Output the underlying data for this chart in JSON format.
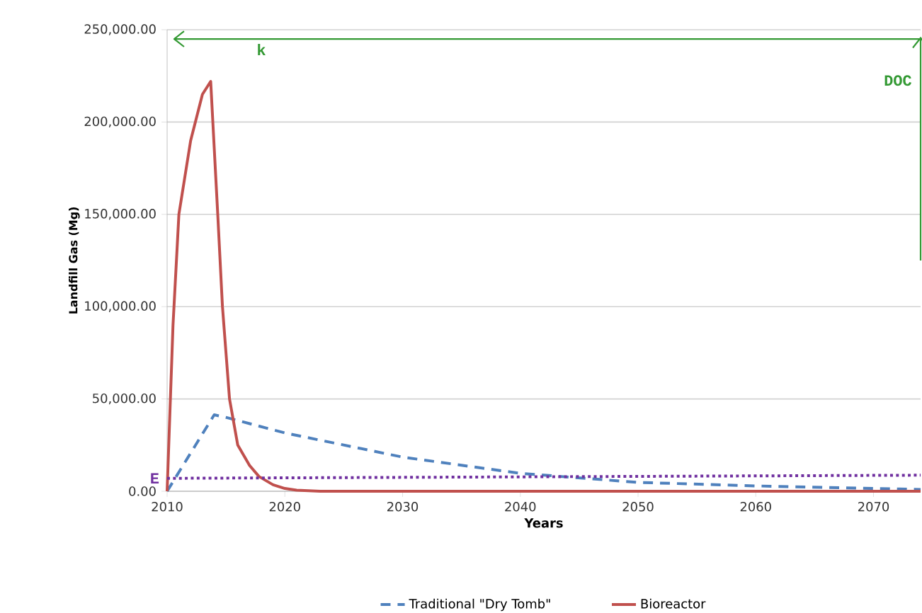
{
  "chart_data": {
    "type": "line",
    "xlabel": "Years",
    "ylabel": "Landfill Gas (Mg)",
    "xlim": [
      2010,
      2074
    ],
    "xticks": [
      2010,
      2020,
      2030,
      2040,
      2050,
      2060,
      2070
    ],
    "ylim": [
      0,
      250000
    ],
    "yticks": [
      {
        "value": 0,
        "label": "0.00"
      },
      {
        "value": 50000,
        "label": "50,000.00"
      },
      {
        "value": 100000,
        "label": "100,000.00"
      },
      {
        "value": 150000,
        "label": "150,000.00"
      },
      {
        "value": 200000,
        "label": "200,000.00"
      },
      {
        "value": 250000,
        "label": "250,000.00"
      }
    ],
    "grid": "y",
    "legend": "bottom",
    "series": [
      {
        "name": "Traditional \"Dry Tomb\"",
        "color": "#4f81bd",
        "line_style": "dashed",
        "x": [
          2010,
          2014,
          2015,
          2020,
          2030,
          2040,
          2050,
          2060,
          2070,
          2074
        ],
        "values": [
          0,
          41400,
          40000,
          31600,
          18500,
          9700,
          4800,
          2900,
          1500,
          1000
        ]
      },
      {
        "name": "Bioreactor",
        "color": "#c0504d",
        "line_style": "solid",
        "x": [
          2010,
          2010.5,
          2011,
          2012,
          2013,
          2013.7,
          2014.3,
          2014.7,
          2015.3,
          2016,
          2017,
          2017.8,
          2019,
          2020,
          2021,
          2023,
          2030,
          2074
        ],
        "values": [
          0,
          90000,
          150000,
          190000,
          215000,
          222000,
          150000,
          100000,
          50000,
          25000,
          14000,
          8000,
          3500,
          1500,
          600,
          0,
          0,
          0
        ]
      },
      {
        "color": "#7030a0",
        "line_style": "dotted",
        "x": [
          2010,
          2074
        ],
        "values": [
          7000,
          8700
        ]
      }
    ],
    "ref_lines": [
      {
        "axis": "y",
        "value": 245000,
        "label": "k",
        "color": "#339933"
      }
    ],
    "annotations": [
      {
        "text": "E",
        "x": 2010,
        "y": 7000
      },
      "DOC"
    ]
  }
}
